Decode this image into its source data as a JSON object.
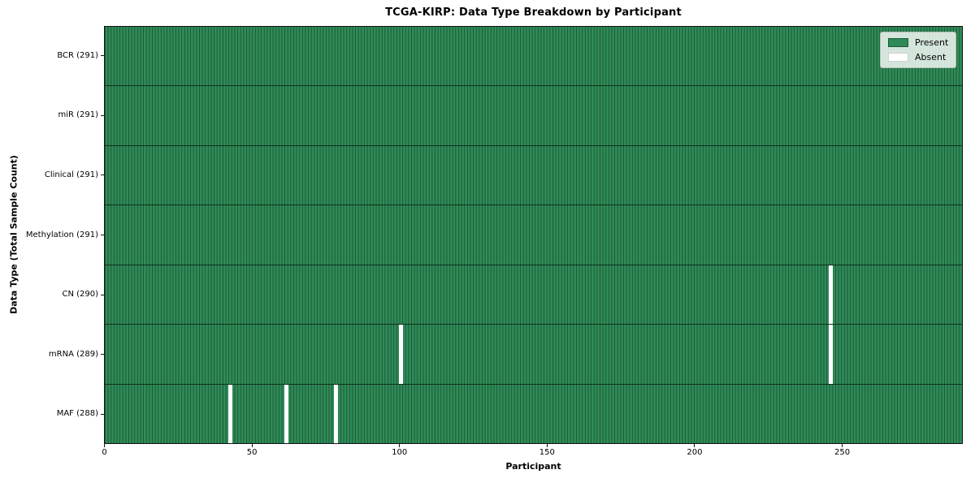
{
  "chart_data": {
    "type": "heatmap",
    "title": "TCGA-KIRP: Data Type Breakdown by Participant",
    "xlabel": "Participant",
    "ylabel": "Data Type (Total Sample Count)",
    "n_participants": 291,
    "x_range": [
      0,
      291
    ],
    "x_ticks": [
      0,
      50,
      100,
      150,
      200,
      250
    ],
    "grid": false,
    "legend_position": "upper right",
    "legend": {
      "present": "Present",
      "absent": "Absent"
    },
    "colors": {
      "present": "#2E8B57",
      "absent": "#FFFFFF",
      "cell_edge": "rgba(0,0,0,0.38)",
      "row_border": "rgba(0,0,0,0.62)",
      "legend_bg": "rgba(255,255,255,0.8)",
      "swatch_edge": "rgba(0,0,0,0.35)",
      "absent_swatch_edge": "rgba(0,0,0,0.18)"
    },
    "rows": [
      {
        "name": "BCR",
        "label": "BCR (291)",
        "present_count": 291,
        "absent_participants": []
      },
      {
        "name": "miR",
        "label": "miR (291)",
        "present_count": 291,
        "absent_participants": []
      },
      {
        "name": "Clinical",
        "label": "Clinical (291)",
        "present_count": 291,
        "absent_participants": []
      },
      {
        "name": "Methylation",
        "label": "Methylation (291)",
        "present_count": 291,
        "absent_participants": []
      },
      {
        "name": "CN",
        "label": "CN (290)",
        "present_count": 290,
        "absent_participants": [
          246
        ]
      },
      {
        "name": "mRNA",
        "label": "mRNA (289)",
        "present_count": 289,
        "absent_participants": [
          100,
          246
        ]
      },
      {
        "name": "MAF",
        "label": "MAF (288)",
        "present_count": 288,
        "absent_participants": [
          42,
          61,
          78
        ]
      }
    ]
  }
}
